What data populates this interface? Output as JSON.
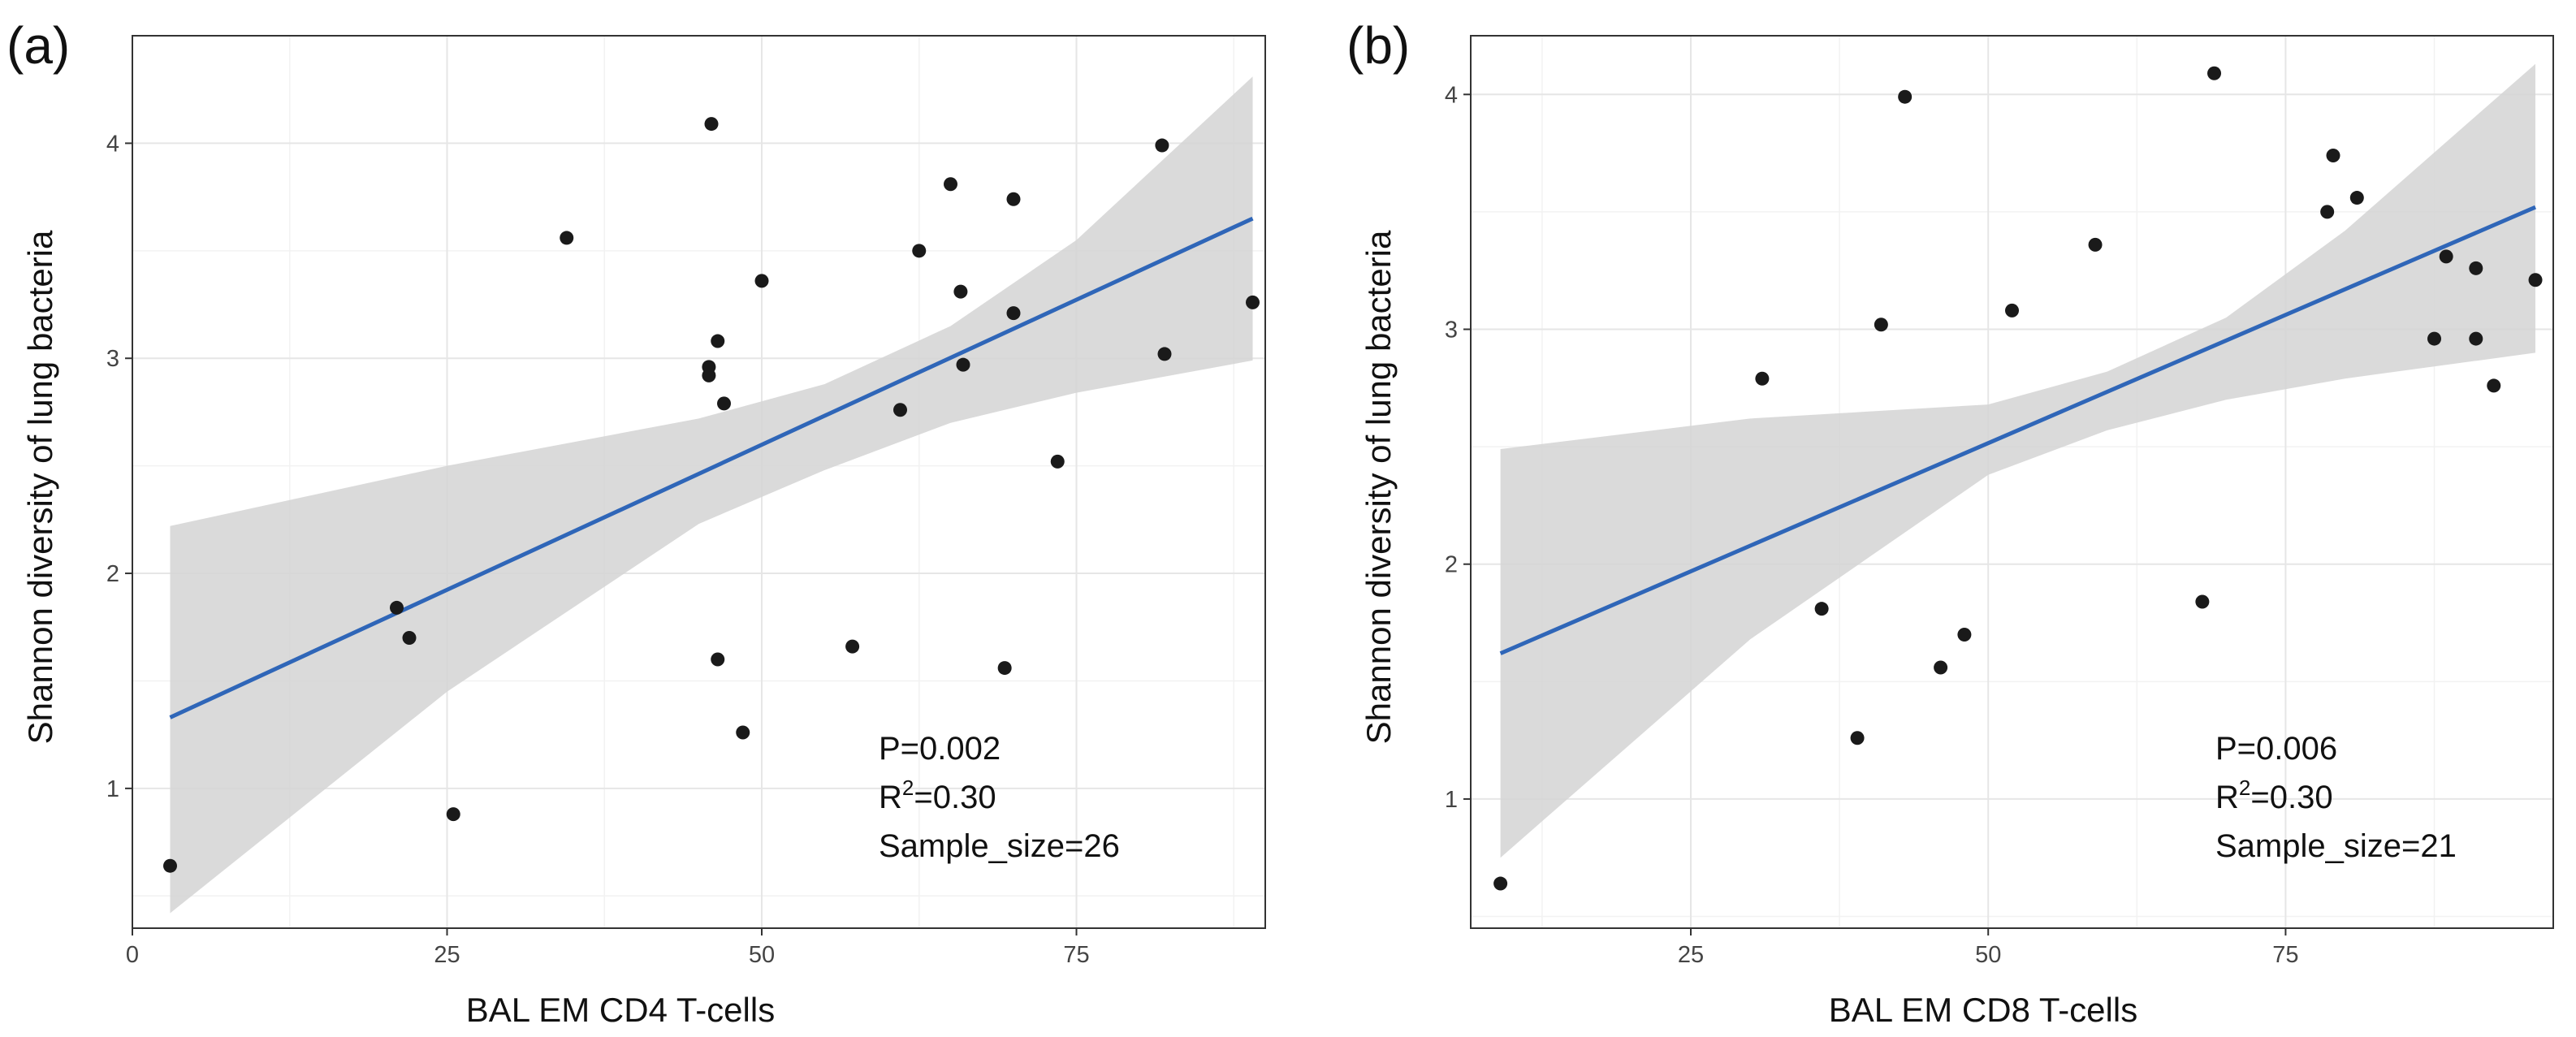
{
  "chart_data": [
    {
      "type": "scatter",
      "panel_label": "(a)",
      "xlabel": "BAL EM CD4 T-cells",
      "ylabel": "Shannon diversity of lung bacteria",
      "xlim": [
        0,
        90
      ],
      "ylim": [
        0.35,
        4.5
      ],
      "xticks": [
        0,
        25,
        50,
        75
      ],
      "yticks": [
        1,
        2,
        3,
        4
      ],
      "grid": true,
      "points": [
        {
          "x": 3,
          "y": 0.64
        },
        {
          "x": 21,
          "y": 1.84
        },
        {
          "x": 22,
          "y": 1.7
        },
        {
          "x": 25.5,
          "y": 0.88
        },
        {
          "x": 34.5,
          "y": 3.56
        },
        {
          "x": 45.8,
          "y": 2.92
        },
        {
          "x": 45.8,
          "y": 2.96
        },
        {
          "x": 46,
          "y": 4.09
        },
        {
          "x": 46.5,
          "y": 3.08
        },
        {
          "x": 46.5,
          "y": 1.6
        },
        {
          "x": 47,
          "y": 2.79
        },
        {
          "x": 48.5,
          "y": 1.26
        },
        {
          "x": 50,
          "y": 3.36
        },
        {
          "x": 57.2,
          "y": 1.66
        },
        {
          "x": 61,
          "y": 2.76
        },
        {
          "x": 62.5,
          "y": 3.5
        },
        {
          "x": 65,
          "y": 3.81
        },
        {
          "x": 65.8,
          "y": 3.31
        },
        {
          "x": 66,
          "y": 2.97
        },
        {
          "x": 69.3,
          "y": 1.56
        },
        {
          "x": 70,
          "y": 3.74
        },
        {
          "x": 70,
          "y": 3.21
        },
        {
          "x": 73.5,
          "y": 2.52
        },
        {
          "x": 81.8,
          "y": 3.99
        },
        {
          "x": 82,
          "y": 3.02
        },
        {
          "x": 89,
          "y": 3.26
        }
      ],
      "fit_line": {
        "x": [
          3,
          89
        ],
        "y": [
          1.33,
          3.65
        ]
      },
      "confidence_band": {
        "x": [
          3,
          25,
          45,
          55,
          65,
          75,
          89
        ],
        "lower": [
          0.42,
          1.45,
          2.23,
          2.48,
          2.7,
          2.84,
          2.99
        ],
        "upper": [
          2.22,
          2.5,
          2.72,
          2.88,
          3.15,
          3.55,
          4.31
        ]
      },
      "annotation": {
        "p": "P=0.002",
        "r2_prefix": "R",
        "r2_sup": "2",
        "r2_value": "=0.30",
        "sample": "Sample_size=26"
      },
      "colors": {
        "line": "#2f66b8",
        "band": "#d3d3d3",
        "point": "#1a1a1a",
        "grid": "#e6e6e6"
      }
    },
    {
      "type": "scatter",
      "panel_label": "(b)",
      "xlabel": "BAL EM CD8 T-cells",
      "ylabel": "Shannon diversity of lung bacteria",
      "xlim": [
        6.5,
        97.5
      ],
      "ylim": [
        0.45,
        4.25
      ],
      "xticks": [
        25,
        50,
        75
      ],
      "yticks": [
        1,
        2,
        3,
        4
      ],
      "grid": true,
      "points": [
        {
          "x": 9,
          "y": 0.64
        },
        {
          "x": 31,
          "y": 2.79
        },
        {
          "x": 36,
          "y": 1.81
        },
        {
          "x": 39,
          "y": 1.26
        },
        {
          "x": 41,
          "y": 3.02
        },
        {
          "x": 43,
          "y": 3.99
        },
        {
          "x": 46,
          "y": 1.56
        },
        {
          "x": 48,
          "y": 1.7
        },
        {
          "x": 52,
          "y": 3.08
        },
        {
          "x": 59,
          "y": 3.36
        },
        {
          "x": 68,
          "y": 1.84
        },
        {
          "x": 69,
          "y": 4.09
        },
        {
          "x": 78.5,
          "y": 3.5
        },
        {
          "x": 79,
          "y": 3.74
        },
        {
          "x": 81,
          "y": 3.56
        },
        {
          "x": 87.5,
          "y": 2.96
        },
        {
          "x": 88.5,
          "y": 3.31
        },
        {
          "x": 91,
          "y": 3.26
        },
        {
          "x": 91,
          "y": 2.96
        },
        {
          "x": 92.5,
          "y": 2.76
        },
        {
          "x": 96,
          "y": 3.21
        }
      ],
      "fit_line": {
        "x": [
          9,
          96
        ],
        "y": [
          1.62,
          3.52
        ]
      },
      "confidence_band": {
        "x": [
          9,
          30,
          50,
          60,
          70,
          80,
          96
        ],
        "lower": [
          0.75,
          1.68,
          2.38,
          2.57,
          2.7,
          2.79,
          2.9
        ],
        "upper": [
          2.49,
          2.62,
          2.68,
          2.82,
          3.05,
          3.42,
          4.13
        ]
      },
      "annotation": {
        "p": "P=0.006",
        "r2_prefix": "R",
        "r2_sup": "2",
        "r2_value": "=0.30",
        "sample": "Sample_size=21"
      },
      "colors": {
        "line": "#2f66b8",
        "band": "#d3d3d3",
        "point": "#1a1a1a",
        "grid": "#e6e6e6"
      }
    }
  ]
}
